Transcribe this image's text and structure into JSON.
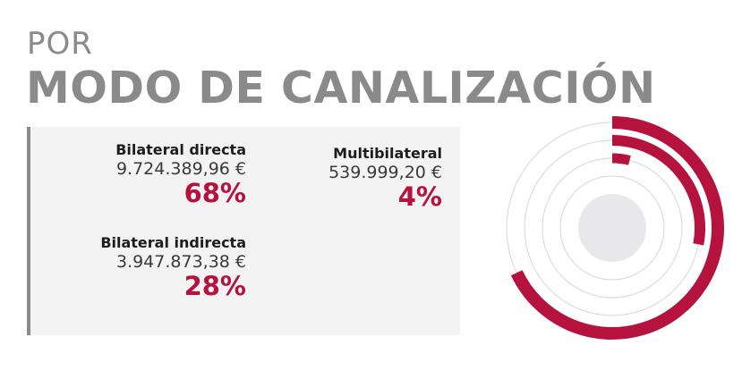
{
  "header": {
    "title_small": "POR",
    "title_big": "MODO DE CANALIZACIÓN"
  },
  "colors": {
    "accent": "#b5123e",
    "title_gray": "#8a8a8a",
    "panel_bg": "#f3f3f4",
    "ring_line": "#dcdcdc",
    "center_fill": "#e8e8ea"
  },
  "entries": [
    {
      "name": "Bilateral directa",
      "amount": "9.724.389,96 €",
      "percent_label": "68%"
    },
    {
      "name": "Bilateral indirecta",
      "amount": "3.947.873,38 €",
      "percent_label": "28%"
    },
    {
      "name": "Multibilateral",
      "amount": "539.999,20 €",
      "percent_label": "4%"
    }
  ],
  "chart_data": {
    "type": "radial-bar",
    "series": [
      {
        "name": "Bilateral directa",
        "value": 68,
        "amount": 9724389.96
      },
      {
        "name": "Bilateral indirecta",
        "value": 28,
        "amount": 3947873.38
      },
      {
        "name": "Multibilateral",
        "value": 4,
        "amount": 539999.2
      }
    ],
    "unit": "%",
    "max": 100
  }
}
